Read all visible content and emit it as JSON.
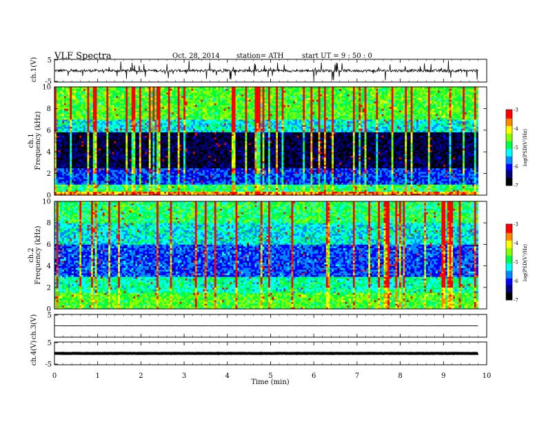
{
  "header": {
    "title": "VLF  Spectra",
    "date": "Oct. 28, 2014",
    "station": "station= ATH",
    "start": "start  UT  =   9  : 50 : 0"
  },
  "colors": {
    "colormap": [
      "#000000",
      "#000080",
      "#0000ff",
      "#0088ff",
      "#00ffff",
      "#00ff44",
      "#88ff00",
      "#ffff00",
      "#ff8800",
      "#ff0000",
      "#ffffff"
    ],
    "trace": "#000000"
  },
  "chart_data": [
    {
      "type": "line",
      "panel": "ch1-waveform",
      "ylabel": "ch.1(V)",
      "ylim": [
        -5,
        5
      ],
      "yticks": [
        "5",
        "-5"
      ],
      "x_range_min": [
        0,
        9.8
      ],
      "baseline": 0,
      "noise_amplitude": 1.2,
      "spikes": true
    },
    {
      "type": "heatmap",
      "panel": "ch1-spectrogram",
      "ylabel": "Frequency  (kHz)",
      "channel_label": "ch.1",
      "ylim": [
        0,
        10
      ],
      "yticks": [
        "0",
        "2",
        "4",
        "6",
        "8",
        "10"
      ],
      "x_range_min": [
        0,
        9.8
      ],
      "colorbar": {
        "label": "log(PSD(V²/Hz)",
        "range": [
          -7,
          -3
        ],
        "ticks": [
          "-3",
          "-4",
          "-5",
          "-6",
          "-7"
        ]
      }
    },
    {
      "type": "heatmap",
      "panel": "ch2-spectrogram",
      "ylabel": "Frequency  (kHz)",
      "channel_label": "ch.2",
      "ylim": [
        0,
        10
      ],
      "yticks": [
        "0",
        "2",
        "4",
        "6",
        "8",
        "10"
      ],
      "x_range_min": [
        0,
        9.8
      ],
      "colorbar": {
        "label": "log(PSD(V²/Hz)",
        "range": [
          -7,
          -3
        ],
        "ticks": [
          "-3",
          "-4",
          "-5",
          "-6",
          "-7"
        ]
      }
    },
    {
      "type": "line",
      "panel": "ch3-waveform",
      "ylabel": "ch.3(V)",
      "ylim": [
        -5,
        5
      ],
      "yticks": [
        "5"
      ],
      "x_range_min": [
        0,
        9.8
      ],
      "baseline": 0,
      "noise_amplitude": 0.1
    },
    {
      "type": "line",
      "panel": "ch4-waveform",
      "ylabel": "ch.4(V)",
      "ylim": [
        -5,
        5
      ],
      "yticks": [
        "5",
        "-5"
      ],
      "x_range_min": [
        0,
        9.8
      ],
      "baseline": 0,
      "noise_amplitude": 0.15,
      "thick": true
    }
  ],
  "xaxis": {
    "label": "Time  (min)",
    "ticks": [
      "0",
      "1",
      "2",
      "3",
      "4",
      "5",
      "6",
      "7",
      "8",
      "9",
      "10"
    ],
    "range": [
      0,
      10
    ]
  }
}
